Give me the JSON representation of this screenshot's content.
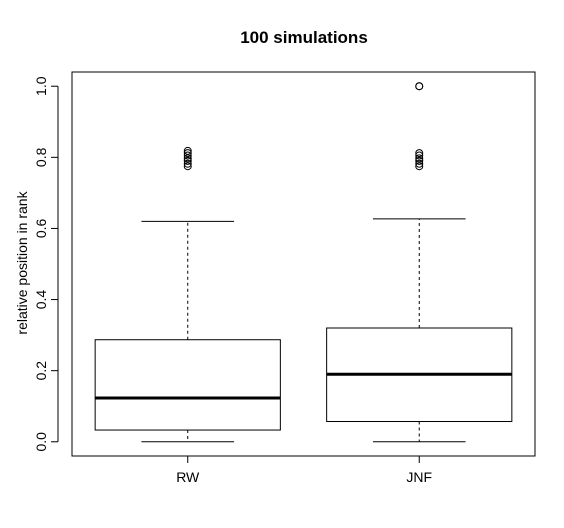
{
  "chart_data": {
    "type": "boxplot",
    "title": "100 simulations",
    "xlabel": "",
    "ylabel": "relative position in rank",
    "categories": [
      "RW",
      "JNF"
    ],
    "ylim": [
      -0.04,
      1.04
    ],
    "yticks": [
      0.0,
      0.2,
      0.4,
      0.6,
      0.8,
      1.0
    ],
    "ytick_labels": [
      "0.0",
      "0.2",
      "0.4",
      "0.6",
      "0.8",
      "1.0"
    ],
    "grid": false,
    "boxes": [
      {
        "category": "RW",
        "whisker_low": 0.0,
        "q1": 0.033,
        "median": 0.123,
        "q3": 0.287,
        "whisker_high": 0.62,
        "outliers": [
          0.775,
          0.782,
          0.79,
          0.797,
          0.805,
          0.812,
          0.818
        ]
      },
      {
        "category": "JNF",
        "whisker_low": 0.0,
        "q1": 0.057,
        "median": 0.19,
        "q3": 0.32,
        "whisker_high": 0.627,
        "outliers": [
          0.775,
          0.782,
          0.79,
          0.797,
          0.805,
          0.812,
          1.0,
          1.0
        ]
      }
    ],
    "colors": {
      "box_stroke": "#000000",
      "box_fill": "#ffffff",
      "median": "#000000"
    }
  }
}
